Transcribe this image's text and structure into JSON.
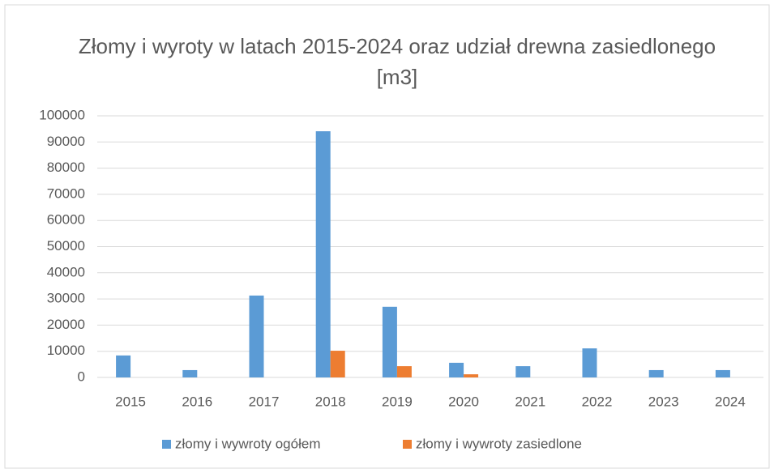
{
  "chart_data": {
    "type": "bar",
    "title": "Złomy i wyroty w latach 2015-2024 oraz udział drewna zasiedlonego [m3]",
    "categories": [
      "2015",
      "2016",
      "2017",
      "2018",
      "2019",
      "2020",
      "2021",
      "2022",
      "2023",
      "2024"
    ],
    "series": [
      {
        "name": "złomy i wywroty ogółem",
        "color": "#5b9bd5",
        "values": [
          8400,
          2800,
          31300,
          94100,
          27000,
          5600,
          4300,
          11100,
          2800,
          2800
        ]
      },
      {
        "name": "złomy i wywroty zasiedlone",
        "color": "#ed7d31",
        "values": [
          0,
          0,
          0,
          10200,
          4300,
          1200,
          0,
          0,
          0,
          0
        ]
      }
    ],
    "ylim": [
      0,
      100000
    ],
    "yticks": [
      0,
      10000,
      20000,
      30000,
      40000,
      50000,
      60000,
      70000,
      80000,
      90000,
      100000
    ],
    "grid": true,
    "legend": "bottom"
  }
}
